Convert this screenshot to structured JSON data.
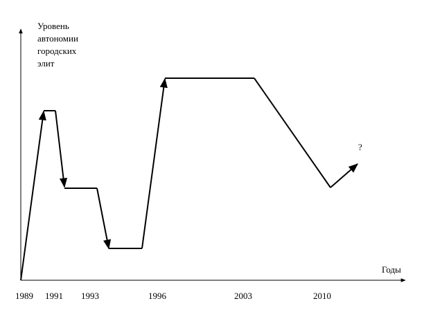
{
  "axis": {
    "y_label": [
      "Уровень",
      "автономии",
      "городских",
      "элит"
    ],
    "x_label": "Годы"
  },
  "years": [
    "1989",
    "1991",
    "1993",
    "1996",
    "2003",
    "2010"
  ],
  "annotation": "?"
}
